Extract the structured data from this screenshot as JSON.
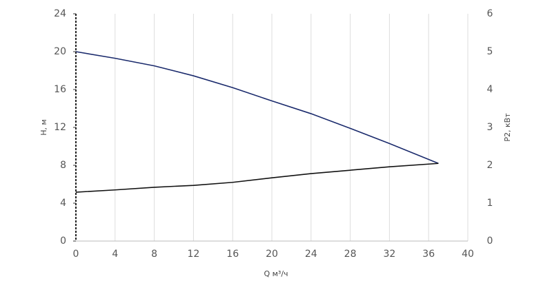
{
  "chart_data": {
    "type": "line",
    "x_label": "Q м³/ч",
    "y_label": "H, м",
    "y2_label": "P2, кВт",
    "xlim": [
      0,
      40
    ],
    "xticks": [
      0,
      4,
      8,
      12,
      16,
      20,
      24,
      28,
      32,
      36,
      40
    ],
    "ylim": [
      0,
      24
    ],
    "yticks": [
      0,
      4,
      8,
      12,
      16,
      20,
      24
    ],
    "y2lim": [
      0,
      6
    ],
    "y2ticks": [
      0,
      1,
      2,
      3,
      4,
      5,
      6
    ],
    "grid": "x",
    "x": [
      0,
      4,
      8,
      12,
      16,
      20,
      24,
      28,
      32,
      37
    ],
    "series": [
      {
        "color": "#1a2a6c",
        "values": [
          20,
          19.3,
          18.5,
          17.45,
          16.2,
          14.8,
          13.45,
          11.9,
          10.3,
          8.2
        ]
      },
      {
        "color": "#111111",
        "axis": "y2",
        "values": [
          1.29,
          1.35,
          1.42,
          1.47,
          1.55,
          1.67,
          1.78,
          1.87,
          1.96,
          2.05
        ]
      }
    ]
  }
}
